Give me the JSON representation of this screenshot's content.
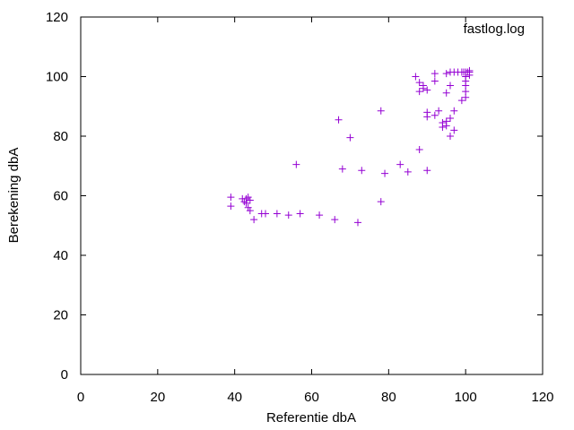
{
  "chart_data": {
    "type": "scatter",
    "title": "",
    "xlabel": "Referentie dbA",
    "ylabel": "Berekening dbA",
    "xlim": [
      0,
      120
    ],
    "ylim": [
      0,
      120
    ],
    "xticks": [
      "0",
      "20",
      "40",
      "60",
      "80",
      "100",
      "120"
    ],
    "yticks": [
      "0",
      "20",
      "40",
      "60",
      "80",
      "100",
      "120"
    ],
    "grid": false,
    "legend_position": "top-right",
    "marker": "plus",
    "series": [
      {
        "name": "fastlog.log",
        "color": "#9400d3",
        "points": [
          [
            39,
            59.5
          ],
          [
            39,
            56.5
          ],
          [
            42,
            59
          ],
          [
            42.5,
            58
          ],
          [
            43,
            59
          ],
          [
            43,
            57.5
          ],
          [
            43.5,
            56
          ],
          [
            43.5,
            59.5
          ],
          [
            44,
            58.5
          ],
          [
            44,
            55
          ],
          [
            45,
            52
          ],
          [
            47,
            54
          ],
          [
            48,
            54
          ],
          [
            51,
            54
          ],
          [
            54,
            53.5
          ],
          [
            57,
            54
          ],
          [
            62,
            53.5
          ],
          [
            66,
            52
          ],
          [
            72,
            51
          ],
          [
            56,
            70.5
          ],
          [
            67,
            85.5
          ],
          [
            68,
            69
          ],
          [
            70,
            79.5
          ],
          [
            73,
            68.5
          ],
          [
            78,
            58
          ],
          [
            78,
            88.5
          ],
          [
            79,
            67.5
          ],
          [
            83,
            70.5
          ],
          [
            85,
            68
          ],
          [
            88,
            75.5
          ],
          [
            90,
            68.5
          ],
          [
            87,
            100
          ],
          [
            88,
            95
          ],
          [
            88,
            98
          ],
          [
            89,
            96
          ],
          [
            89,
            97
          ],
          [
            90,
            95.5
          ],
          [
            90,
            88
          ],
          [
            90,
            86.5
          ],
          [
            92,
            101
          ],
          [
            92,
            98.5
          ],
          [
            92,
            87
          ],
          [
            93,
            88.5
          ],
          [
            94,
            83
          ],
          [
            94,
            84.5
          ],
          [
            95,
            83.5
          ],
          [
            95,
            94.5
          ],
          [
            95,
            101
          ],
          [
            95,
            85
          ],
          [
            96,
            80
          ],
          [
            96,
            86
          ],
          [
            96,
            97
          ],
          [
            96,
            101.5
          ],
          [
            97,
            82
          ],
          [
            97,
            88.5
          ],
          [
            97,
            101.5
          ],
          [
            98,
            101.5
          ],
          [
            99,
            92
          ],
          [
            99,
            101.5
          ],
          [
            99.5,
            101.5
          ],
          [
            100,
            93
          ],
          [
            100,
            95
          ],
          [
            100,
            97
          ],
          [
            100,
            98.5
          ],
          [
            100,
            100
          ],
          [
            100,
            101.5
          ],
          [
            100.5,
            101.5
          ],
          [
            101,
            101.5
          ],
          [
            101,
            100.5
          ],
          [
            101,
            102
          ]
        ]
      }
    ]
  }
}
